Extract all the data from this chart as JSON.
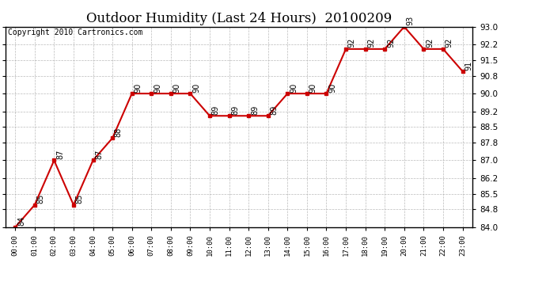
{
  "title": "Outdoor Humidity (Last 24 Hours)  20100209",
  "copyright": "Copyright 2010 Cartronics.com",
  "x_labels": [
    "00:00",
    "01:00",
    "02:00",
    "03:00",
    "04:00",
    "05:00",
    "06:00",
    "07:00",
    "08:00",
    "09:00",
    "10:00",
    "11:00",
    "12:00",
    "13:00",
    "14:00",
    "15:00",
    "16:00",
    "17:00",
    "18:00",
    "19:00",
    "20:00",
    "21:00",
    "22:00",
    "23:00"
  ],
  "y_values": [
    84,
    85,
    87,
    85,
    87,
    88,
    90,
    90,
    90,
    90,
    89,
    89,
    89,
    89,
    90,
    90,
    90,
    92,
    92,
    92,
    93,
    92,
    92,
    91
  ],
  "ylim": [
    84.0,
    93.0
  ],
  "yticks": [
    84.0,
    84.8,
    85.5,
    86.2,
    87.0,
    87.8,
    88.5,
    89.2,
    90.0,
    90.8,
    91.5,
    92.2,
    93.0
  ],
  "line_color": "#cc0000",
  "marker_color": "#cc0000",
  "background_color": "#ffffff",
  "grid_color": "#aaaaaa",
  "title_fontsize": 12,
  "copyright_fontsize": 7,
  "annotation_fontsize": 7
}
